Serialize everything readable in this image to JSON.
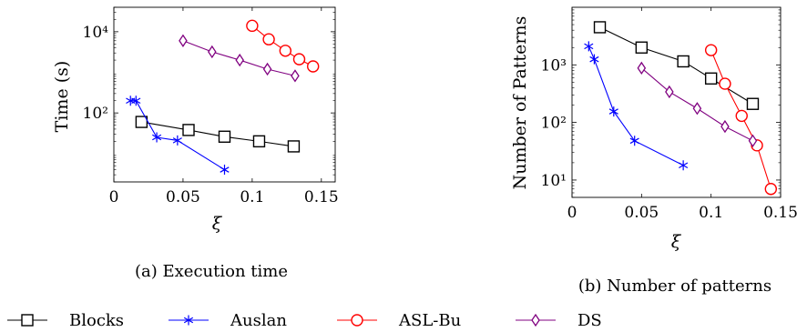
{
  "figure": {
    "legend": {
      "placement": "bottom",
      "entries": [
        {
          "name": "Blocks",
          "color": "#000000",
          "marker": "square"
        },
        {
          "name": "Auslan",
          "color": "#0000ff",
          "marker": "star"
        },
        {
          "name": "ASL-Bu",
          "color": "#ff0000",
          "marker": "circle"
        },
        {
          "name": "DS",
          "color": "#800080",
          "marker": "diamond"
        }
      ]
    }
  },
  "chart_data": [
    {
      "type": "line",
      "caption": "(a) Execution time",
      "xlabel": "ξ",
      "ylabel": "Time (s)",
      "yscale": "log",
      "xlim": [
        0,
        0.16
      ],
      "ylim": [
        2,
        40000
      ],
      "xticks": [
        0,
        0.05,
        0.1,
        0.15
      ],
      "xtick_labels": [
        "0",
        "0.05",
        "0.1",
        "0.15"
      ],
      "yticks": [
        100,
        10000
      ],
      "ytick_labels": [
        "10²",
        "10⁴"
      ],
      "grid": false,
      "series": [
        {
          "name": "Blocks",
          "x": [
            0.02,
            0.054,
            0.08,
            0.105,
            0.13
          ],
          "y": [
            60,
            38,
            26,
            20,
            15
          ]
        },
        {
          "name": "Auslan",
          "x": [
            0.012,
            0.016,
            0.031,
            0.046,
            0.08
          ],
          "y": [
            200,
            200,
            25,
            21,
            4
          ]
        },
        {
          "name": "ASL-Bu",
          "x": [
            0.1,
            0.112,
            0.124,
            0.134,
            0.144
          ],
          "y": [
            14000,
            6500,
            3400,
            2100,
            1400
          ]
        },
        {
          "name": "DS",
          "x": [
            0.05,
            0.071,
            0.091,
            0.111,
            0.131
          ],
          "y": [
            6000,
            3200,
            2000,
            1200,
            820
          ]
        }
      ]
    },
    {
      "type": "line",
      "caption": "(b) Number of patterns",
      "xlabel": "ξ",
      "ylabel": "Number of Patterns",
      "yscale": "log",
      "xlim": [
        0,
        0.15
      ],
      "ylim": [
        5,
        10000
      ],
      "xticks": [
        0,
        0.05,
        0.1,
        0.15
      ],
      "xtick_labels": [
        "0",
        "0.05",
        "0.1",
        "0.15"
      ],
      "yticks": [
        10,
        100,
        1000
      ],
      "ytick_labels": [
        "10¹",
        "10²",
        "10³"
      ],
      "grid": false,
      "series": [
        {
          "name": "Blocks",
          "x": [
            0.02,
            0.05,
            0.08,
            0.1,
            0.13
          ],
          "y": [
            4500,
            2000,
            1150,
            580,
            210
          ]
        },
        {
          "name": "Auslan",
          "x": [
            0.012,
            0.016,
            0.03,
            0.045,
            0.08
          ],
          "y": [
            2100,
            1250,
            155,
            48,
            18
          ]
        },
        {
          "name": "ASL-Bu",
          "x": [
            0.1,
            0.11,
            0.122,
            0.133,
            0.143
          ],
          "y": [
            1800,
            470,
            130,
            40,
            7
          ]
        },
        {
          "name": "DS",
          "x": [
            0.05,
            0.07,
            0.09,
            0.11,
            0.13
          ],
          "y": [
            880,
            340,
            175,
            85,
            48
          ]
        }
      ]
    }
  ]
}
